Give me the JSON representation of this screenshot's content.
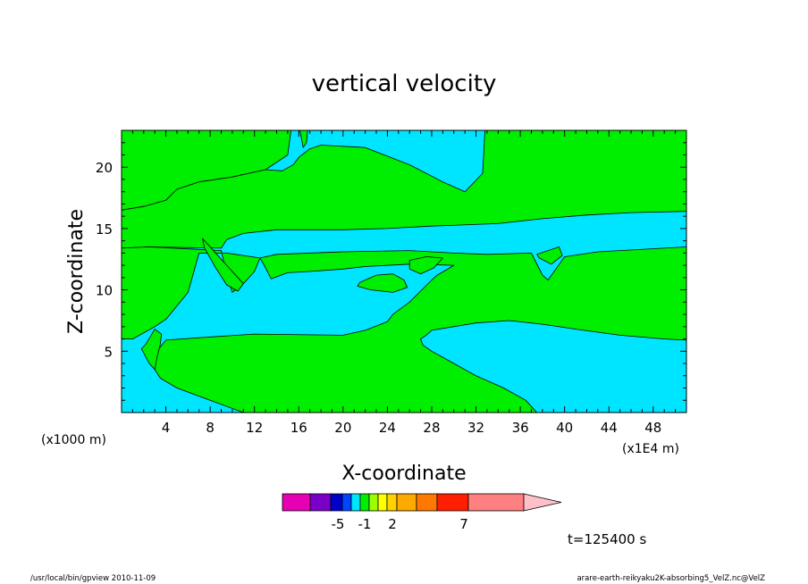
{
  "chart_data": {
    "type": "heatmap",
    "title": "vertical velocity",
    "xlabel": "X-coordinate",
    "ylabel": "Z-coordinate",
    "x_unit_left": "(x1000 m)",
    "x_unit_right": "(x1E4 m)",
    "xlim": [
      0,
      51
    ],
    "ylim": [
      0,
      23
    ],
    "x_ticks": [
      4,
      8,
      12,
      16,
      20,
      24,
      28,
      32,
      36,
      40,
      44,
      48
    ],
    "y_ticks": [
      5,
      10,
      15,
      20
    ],
    "x_minor_step": 1,
    "y_minor_step": 1,
    "fill_colors": {
      "positive": "#00ee00",
      "negative": "#00e5ff"
    },
    "regions": [
      {
        "sign": "positive",
        "points": [
          [
            0,
            16.5
          ],
          [
            2,
            16.8
          ],
          [
            4,
            17.3
          ],
          [
            5,
            18.2
          ],
          [
            7,
            18.8
          ],
          [
            10,
            19.2
          ],
          [
            13,
            19.8
          ],
          [
            15,
            21.0
          ],
          [
            15.3,
            23
          ],
          [
            0,
            23
          ]
        ]
      },
      {
        "sign": "positive",
        "points": [
          [
            32.8,
            23
          ],
          [
            51,
            23
          ],
          [
            51,
            16.4
          ],
          [
            46,
            16.3
          ],
          [
            42,
            16.1
          ],
          [
            38,
            15.8
          ],
          [
            34,
            15.4
          ],
          [
            28,
            15.2
          ],
          [
            24,
            15.0
          ],
          [
            20,
            14.9
          ],
          [
            14,
            14.9
          ],
          [
            11,
            14.6
          ],
          [
            9.5,
            14.1
          ],
          [
            9,
            13.4
          ],
          [
            2.5,
            13.5
          ],
          [
            0,
            13.4
          ],
          [
            0,
            16.5
          ],
          [
            2,
            16.8
          ],
          [
            4,
            17.3
          ],
          [
            5,
            18.2
          ],
          [
            7,
            18.8
          ],
          [
            10,
            19.2
          ],
          [
            13,
            19.8
          ],
          [
            14.5,
            19.7
          ],
          [
            15.5,
            20.2
          ],
          [
            16,
            20.8
          ],
          [
            17,
            21.5
          ],
          [
            18,
            21.8
          ],
          [
            22,
            21.6
          ],
          [
            26,
            20.2
          ],
          [
            29,
            18.8
          ],
          [
            31,
            18.0
          ],
          [
            32.6,
            19.5
          ]
        ]
      },
      {
        "sign": "positive",
        "points": [
          [
            0,
            13.4
          ],
          [
            2.5,
            13.5
          ],
          [
            7,
            13.3
          ],
          [
            9,
            13.2
          ],
          [
            9.5,
            11.3
          ],
          [
            10,
            9.8
          ],
          [
            11,
            10.5
          ],
          [
            12,
            11.5
          ],
          [
            12.5,
            12.6
          ],
          [
            14,
            12.9
          ],
          [
            20,
            13.1
          ],
          [
            26,
            13.2
          ],
          [
            30,
            13.0
          ],
          [
            33,
            12.9
          ],
          [
            37,
            13.0
          ],
          [
            38,
            11.2
          ],
          [
            38.5,
            10.8
          ],
          [
            40,
            12.7
          ],
          [
            43,
            13.1
          ],
          [
            51,
            13.5
          ],
          [
            51,
            5.9
          ],
          [
            49,
            6.0
          ],
          [
            45,
            6.3
          ],
          [
            41,
            6.8
          ],
          [
            38,
            7.2
          ],
          [
            35,
            7.5
          ],
          [
            32,
            7.3
          ],
          [
            28,
            6.7
          ],
          [
            27.5,
            6.3
          ],
          [
            27,
            6.0
          ],
          [
            27.2,
            5.5
          ],
          [
            28,
            5.0
          ],
          [
            30,
            4.0
          ],
          [
            32,
            3.0
          ],
          [
            34.5,
            2.0
          ],
          [
            36.5,
            1.0
          ],
          [
            37.5,
            0
          ],
          [
            11,
            0
          ],
          [
            8,
            1.0
          ],
          [
            5,
            2.0
          ],
          [
            3.5,
            2.8
          ],
          [
            3,
            3.5
          ],
          [
            3,
            4.8
          ],
          [
            4,
            5.9
          ],
          [
            7,
            6.1
          ],
          [
            12,
            6.4
          ],
          [
            20,
            6.3
          ],
          [
            22,
            6.7
          ],
          [
            24,
            7.4
          ],
          [
            24.5,
            8.0
          ],
          [
            26,
            9.0
          ],
          [
            28,
            10.8
          ],
          [
            28.5,
            11.2
          ],
          [
            30,
            12.0
          ],
          [
            26,
            12.1
          ],
          [
            22,
            11.9
          ],
          [
            20,
            11.7
          ],
          [
            17,
            11.5
          ],
          [
            15,
            11.4
          ],
          [
            13.5,
            10.9
          ],
          [
            13,
            11.8
          ],
          [
            12.5,
            12.6
          ],
          [
            9.5,
            13.0
          ],
          [
            7,
            13.0
          ],
          [
            6,
            9.8
          ],
          [
            4,
            7.6
          ],
          [
            3,
            7.0
          ],
          [
            1,
            6.0
          ],
          [
            0,
            6.0
          ]
        ]
      },
      {
        "sign": "positive",
        "points": [
          [
            3,
            6.8
          ],
          [
            2.2,
            5.6
          ],
          [
            1.8,
            5.2
          ],
          [
            2.5,
            4.0
          ],
          [
            3,
            3.5
          ],
          [
            3.2,
            4.5
          ],
          [
            3.5,
            5.6
          ],
          [
            3.6,
            6.4
          ]
        ]
      },
      {
        "sign": "positive",
        "points": [
          [
            7.3,
            14.2
          ],
          [
            9,
            12.5
          ],
          [
            11,
            10.5
          ],
          [
            10.5,
            9.9
          ],
          [
            9.5,
            10.4
          ],
          [
            8.5,
            11.8
          ],
          [
            7.5,
            13.4
          ]
        ]
      },
      {
        "sign": "positive",
        "points": [
          [
            21.5,
            10.6
          ],
          [
            23,
            11.2
          ],
          [
            24.5,
            11.3
          ],
          [
            25.5,
            10.8
          ],
          [
            25.8,
            10.2
          ],
          [
            24.5,
            9.8
          ],
          [
            22.5,
            10.0
          ],
          [
            21.3,
            10.3
          ]
        ]
      },
      {
        "sign": "positive",
        "points": [
          [
            26,
            12.4
          ],
          [
            27.5,
            12.7
          ],
          [
            29,
            12.6
          ],
          [
            28.2,
            11.8
          ],
          [
            27,
            11.3
          ],
          [
            26,
            11.7
          ]
        ]
      },
      {
        "sign": "positive",
        "points": [
          [
            37.5,
            12.9
          ],
          [
            39.5,
            13.5
          ],
          [
            39.8,
            12.8
          ],
          [
            38.8,
            12.1
          ],
          [
            37.7,
            12.6
          ]
        ]
      },
      {
        "sign": "positive",
        "points": [
          [
            16.1,
            23
          ],
          [
            16.4,
            21.6
          ],
          [
            16.7,
            22.0
          ],
          [
            16.8,
            23
          ]
        ]
      }
    ],
    "colorbar": {
      "bins": [
        "#e600b4",
        "#7a00c8",
        "#0000c8",
        "#0046ff",
        "#00e5ff",
        "#00ee00",
        "#9bff00",
        "#ffff00",
        "#ffd200",
        "#ffaa00",
        "#ff7800",
        "#ff1e00",
        "#ff8080"
      ],
      "arrow_color": "#ffc0c8",
      "tick_labels": [
        {
          "text": "-5",
          "after_bin": 2
        },
        {
          "text": "-1",
          "after_bin": 5
        },
        {
          "text": "2",
          "after_bin": 8
        },
        {
          "text": "7",
          "after_bin": 11
        }
      ]
    },
    "time_label": "t=125400 s"
  },
  "footer": {
    "left": "/usr/local/bin/gpview  2010-11-09",
    "right": "arare-earth-reikyaku2K-absorbing5_VelZ.nc@VelZ"
  }
}
